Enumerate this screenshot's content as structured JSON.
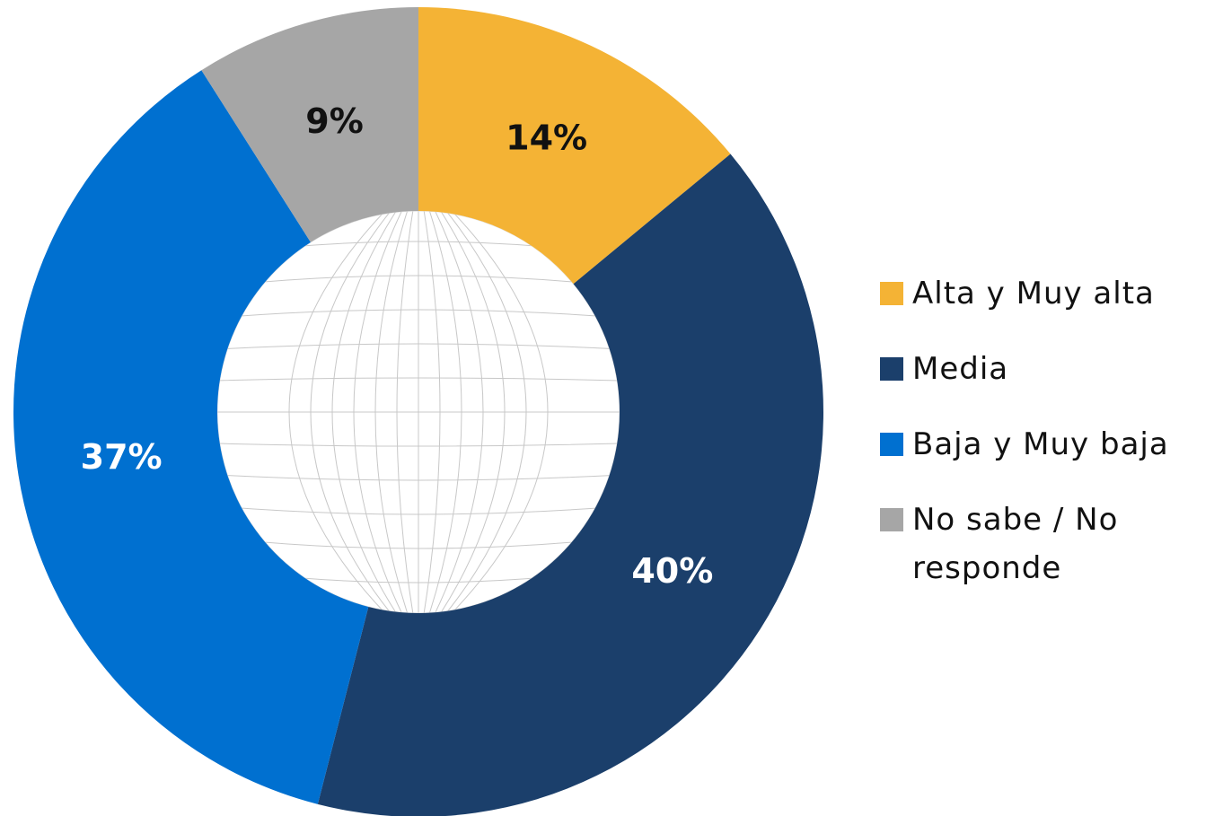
{
  "chart_data": {
    "type": "donut",
    "categories": [
      "Alta y Muy alta",
      "Media",
      "Baja y Muy baja",
      "No sabe / No responde"
    ],
    "values": [
      14,
      40,
      37,
      9
    ],
    "value_labels": [
      "14%",
      "40%",
      "37%",
      "9%"
    ],
    "colors": [
      "#F4B335",
      "#1B3F6B",
      "#0070D0",
      "#A6A6A6"
    ],
    "legend": "right"
  }
}
